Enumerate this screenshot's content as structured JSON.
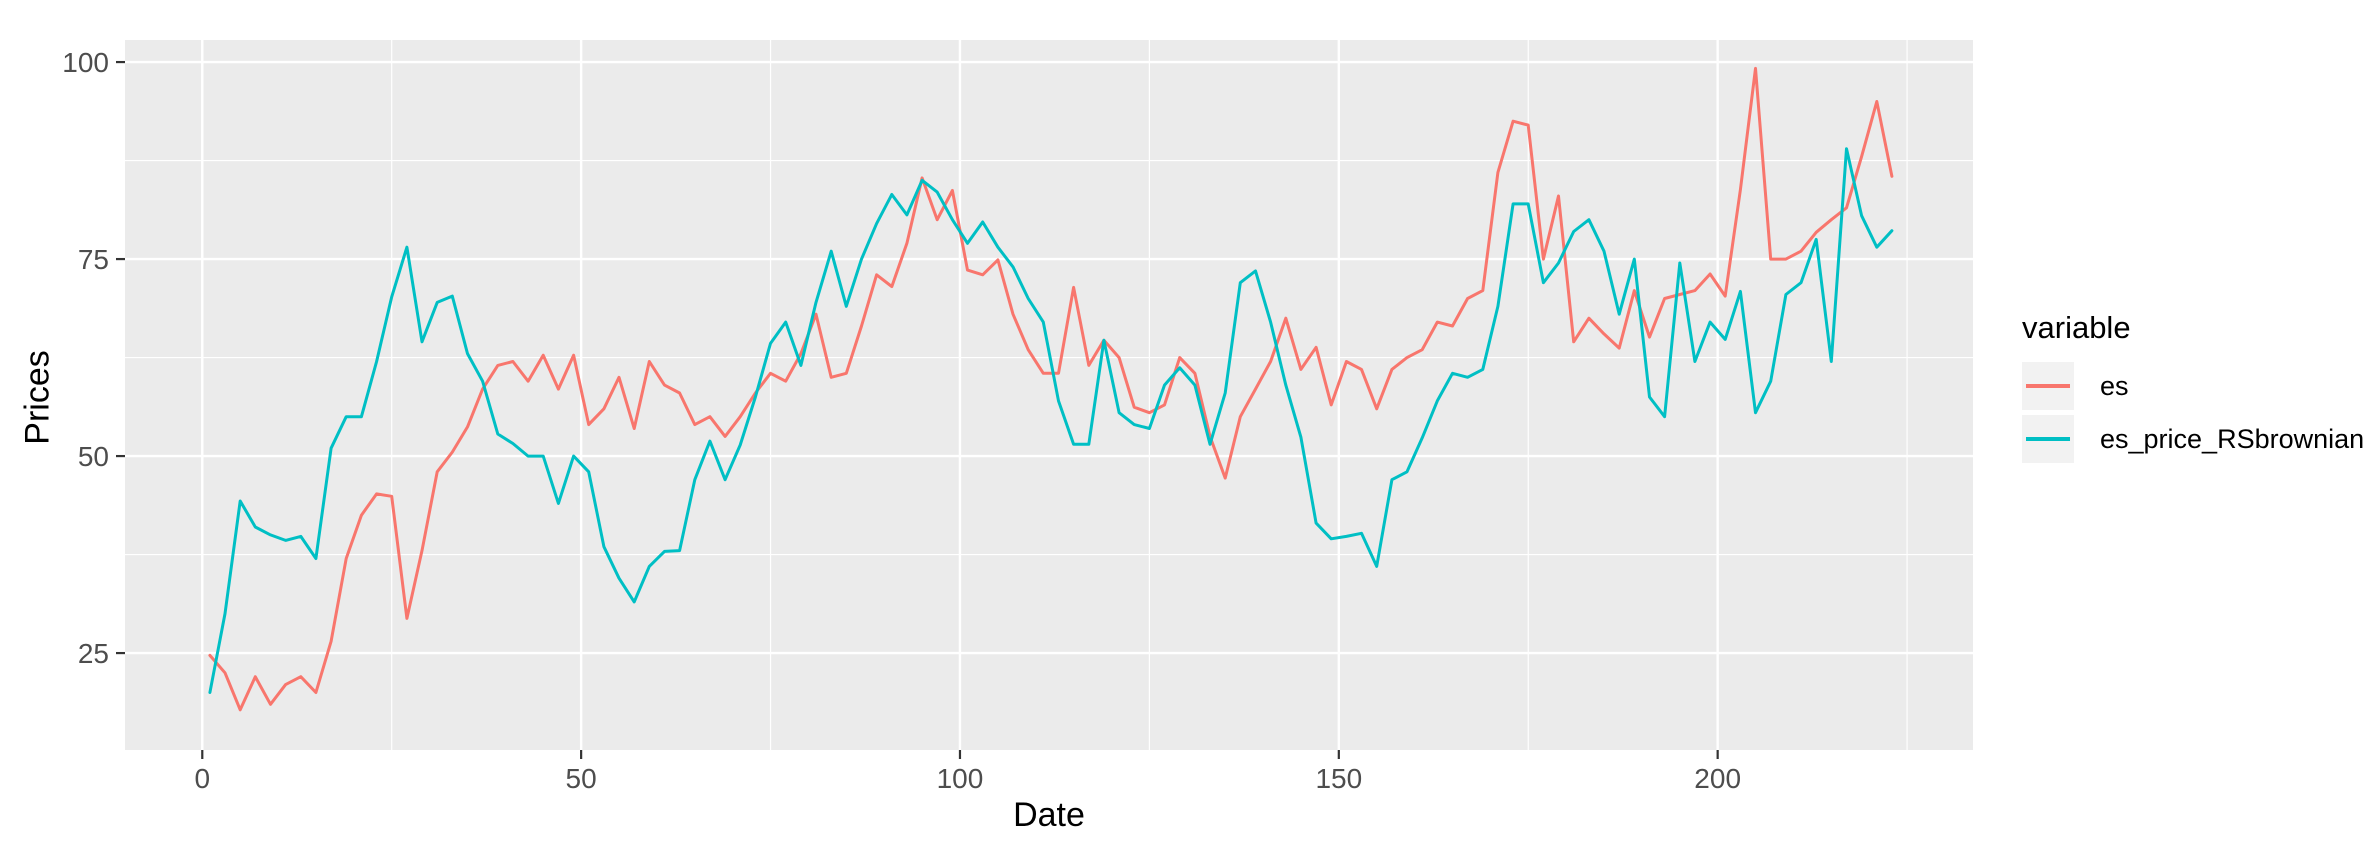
{
  "chart_data": {
    "type": "line",
    "title": "",
    "xlabel": "Date",
    "ylabel": "Prices",
    "legend_title": "variable",
    "xlim": [
      -10.2,
      233.7
    ],
    "ylim": [
      12.7,
      102.8
    ],
    "x_ticks": [
      0,
      50,
      100,
      150,
      200
    ],
    "y_ticks": [
      25,
      50,
      75,
      100
    ],
    "x_minor_ticks": [
      25,
      75,
      125,
      175,
      225
    ],
    "y_minor_ticks": [
      12.5,
      37.5,
      62.5,
      87.5
    ],
    "grid": true,
    "legend_position": "right",
    "x0": 1,
    "dx": 2,
    "series": [
      {
        "name": "es",
        "color": "#F8766D",
        "values": [
          24.7,
          22.5,
          17.8,
          22,
          18.5,
          21,
          22,
          20,
          26.5,
          37,
          42.5,
          45.2,
          44.9,
          29.4,
          38,
          48,
          50.5,
          53.7,
          58.5,
          61.5,
          62,
          59.5,
          62.8,
          58.5,
          62.8,
          54,
          56,
          60,
          53.5,
          62,
          59,
          58,
          54,
          55,
          52.5,
          55,
          58,
          60.5,
          59.5,
          63,
          68,
          60,
          60.5,
          66.5,
          73,
          71.5,
          77,
          85.3,
          80,
          83.7,
          73.6,
          73,
          74.9,
          68,
          63.5,
          60.5,
          60.5,
          71.4,
          61.5,
          64.7,
          62.5,
          56.2,
          55.5,
          56.5,
          62.5,
          60.5,
          52.5,
          47.2,
          55,
          58.5,
          62,
          67.5,
          61,
          63.8,
          56.5,
          62,
          61,
          56,
          61,
          62.5,
          63.5,
          67,
          66.5,
          70,
          71,
          86,
          92.5,
          92,
          75,
          83,
          64.5,
          67.5,
          65.5,
          63.7,
          71,
          65.1,
          70,
          70.5,
          71,
          73.1,
          70.3,
          83.8,
          99.2,
          75,
          75,
          76,
          78.4,
          80,
          81.5,
          88,
          95,
          85.5
        ]
      },
      {
        "name": "es_price_RSbrownian",
        "color": "#00BFC4",
        "values": [
          20,
          30,
          44.3,
          41,
          40,
          39.3,
          39.8,
          37,
          51,
          55,
          55,
          62,
          70.2,
          76.5,
          64.5,
          69.5,
          70.3,
          63,
          59.5,
          52.8,
          51.6,
          50,
          50,
          44,
          50,
          48,
          38.5,
          34.5,
          31.5,
          36,
          37.9,
          38,
          47,
          51.9,
          47,
          51.4,
          57.5,
          64.3,
          67,
          61.5,
          69.5,
          76,
          69,
          75,
          79.5,
          83.2,
          80.6,
          85,
          83.5,
          80,
          77,
          79.7,
          76.5,
          74,
          70,
          67,
          57,
          51.5,
          51.5,
          64.7,
          55.5,
          54,
          53.5,
          59,
          61.2,
          59,
          51.5,
          58,
          72,
          73.5,
          67,
          59,
          52.4,
          41.5,
          39.5,
          39.8,
          40.2,
          36,
          47,
          48,
          52.3,
          57,
          60.5,
          60,
          61,
          69,
          82,
          82,
          72,
          74.5,
          78.5,
          80,
          76,
          68,
          75,
          57.5,
          55,
          74.5,
          62,
          67,
          64.8,
          70.9,
          55.5,
          59.5,
          70.5,
          72,
          77.5,
          62,
          89,
          80.5,
          76.5,
          78.6
        ]
      }
    ]
  },
  "style": {
    "page_bg": "#FFFFFF",
    "panel_bg": "#EBEBEB",
    "grid_color": "#FFFFFF",
    "tick_mark_color": "#333333",
    "tick_label_color": "#4D4D4D",
    "axis_title_color": "#000000",
    "legend_key_bg": "#F2F2F2"
  }
}
